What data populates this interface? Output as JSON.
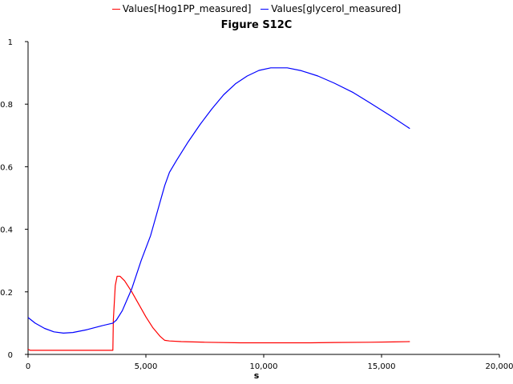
{
  "chart_data": {
    "type": "line",
    "title": "Figure S12C",
    "xlabel": "s",
    "ylabel": "",
    "xlim": [
      0,
      20000
    ],
    "ylim": [
      0,
      1
    ],
    "grid": false,
    "legend_position": "top",
    "x_ticks": [
      0,
      5000,
      10000,
      15000,
      20000
    ],
    "x_tick_labels": [
      "0",
      "5,000",
      "10,000",
      "15,000",
      "20,000"
    ],
    "y_ticks": [
      0,
      0.2,
      0.4,
      0.6,
      0.8,
      1
    ],
    "y_tick_labels": [
      "0",
      "0.2",
      "0.4",
      "0.6",
      "0.8",
      "1"
    ],
    "series": [
      {
        "name": "Values[Hog1PP_measured]",
        "color": "#ff0000",
        "points": [
          [
            0,
            0.016
          ],
          [
            100,
            0.013
          ],
          [
            1000,
            0.013
          ],
          [
            2000,
            0.013
          ],
          [
            3000,
            0.013
          ],
          [
            3600,
            0.013
          ],
          [
            3620,
            0.11
          ],
          [
            3700,
            0.22
          ],
          [
            3780,
            0.25
          ],
          [
            3900,
            0.25
          ],
          [
            4100,
            0.235
          ],
          [
            4400,
            0.2
          ],
          [
            4700,
            0.16
          ],
          [
            5000,
            0.12
          ],
          [
            5300,
            0.085
          ],
          [
            5600,
            0.058
          ],
          [
            5800,
            0.045
          ],
          [
            6000,
            0.043
          ],
          [
            6500,
            0.041
          ],
          [
            7500,
            0.039
          ],
          [
            9000,
            0.037
          ],
          [
            10500,
            0.037
          ],
          [
            12000,
            0.037
          ],
          [
            13000,
            0.038
          ],
          [
            14500,
            0.039
          ],
          [
            15500,
            0.04
          ],
          [
            16200,
            0.041
          ]
        ]
      },
      {
        "name": "Values[glycerol_measured]",
        "color": "#0000ff",
        "points": [
          [
            0,
            0.118
          ],
          [
            300,
            0.1
          ],
          [
            700,
            0.083
          ],
          [
            1100,
            0.072
          ],
          [
            1500,
            0.068
          ],
          [
            1900,
            0.07
          ],
          [
            2500,
            0.079
          ],
          [
            3100,
            0.091
          ],
          [
            3600,
            0.1
          ],
          [
            3750,
            0.11
          ],
          [
            4000,
            0.14
          ],
          [
            4400,
            0.21
          ],
          [
            4800,
            0.3
          ],
          [
            5200,
            0.38
          ],
          [
            5500,
            0.46
          ],
          [
            5800,
            0.54
          ],
          [
            6000,
            0.582
          ],
          [
            6300,
            0.62
          ],
          [
            6800,
            0.68
          ],
          [
            7300,
            0.735
          ],
          [
            7800,
            0.785
          ],
          [
            8300,
            0.83
          ],
          [
            8800,
            0.865
          ],
          [
            9300,
            0.89
          ],
          [
            9800,
            0.908
          ],
          [
            10300,
            0.916
          ],
          [
            11000,
            0.916
          ],
          [
            11600,
            0.907
          ],
          [
            12300,
            0.89
          ],
          [
            13000,
            0.867
          ],
          [
            13800,
            0.837
          ],
          [
            14600,
            0.8
          ],
          [
            15400,
            0.762
          ],
          [
            16200,
            0.722
          ]
        ]
      }
    ]
  }
}
